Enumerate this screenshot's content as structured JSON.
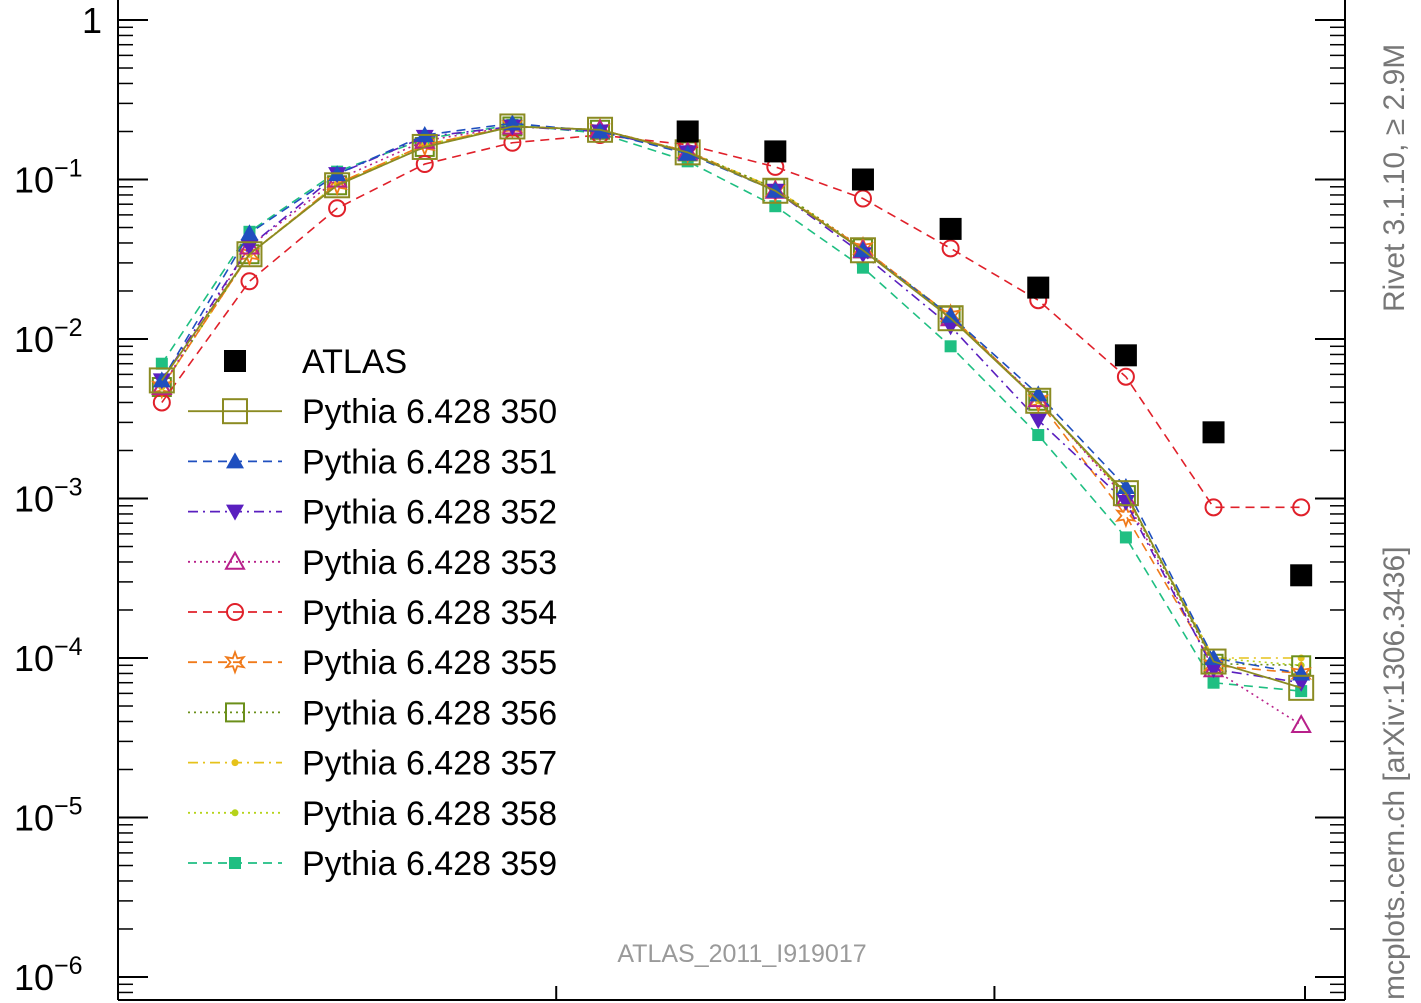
{
  "chart_data": {
    "type": "scatter",
    "title": "",
    "xlabel": "",
    "ylabel": "",
    "y_scale": "log",
    "ylim": [
      1e-06,
      1
    ],
    "xlim": [
      0.5,
      14.5
    ],
    "x": [
      1,
      2,
      3,
      4,
      5,
      6,
      7,
      8,
      9,
      10,
      11,
      12,
      13,
      14
    ],
    "y_ticks": [
      {
        "base": "1",
        "exp": ""
      },
      {
        "base": "10",
        "exp": "−1"
      },
      {
        "base": "10",
        "exp": "−2"
      },
      {
        "base": "10",
        "exp": "−3"
      },
      {
        "base": "10",
        "exp": "−4"
      },
      {
        "base": "10",
        "exp": "−5"
      },
      {
        "base": "10",
        "exp": "−6"
      }
    ],
    "watermark": "ATLAS_2011_I919017",
    "side_text": {
      "left": "mcplots.cern.ch [arXiv:1306.3436]",
      "right": "Rivet 3.1.10, ≥ 2.9M"
    },
    "legend_position": "left-middle",
    "series": [
      {
        "name": "ATLAS",
        "color": "#000000",
        "marker": "square-filled",
        "dash": "none",
        "values": [
          null,
          null,
          null,
          null,
          null,
          null,
          0.2,
          0.15,
          0.1,
          0.049,
          0.021,
          0.0079,
          0.0026,
          0.00033
        ]
      },
      {
        "name": "Pythia 6.428 350",
        "color": "#8b8b22",
        "marker": "square-open-large",
        "dash": "solid",
        "values": [
          0.0055,
          0.034,
          0.092,
          0.16,
          0.215,
          0.205,
          0.148,
          0.085,
          0.036,
          0.0135,
          0.0041,
          0.00108,
          9.5e-05,
          6.5e-05
        ]
      },
      {
        "name": "Pythia 6.428 351",
        "color": "#1f4fbf",
        "marker": "triangle-up-filled",
        "dash": "dashed",
        "values": [
          0.0055,
          0.046,
          0.108,
          0.19,
          0.225,
          0.2,
          0.145,
          0.085,
          0.036,
          0.014,
          0.0045,
          0.00118,
          0.0001,
          8e-05
        ]
      },
      {
        "name": "Pythia 6.428 352",
        "color": "#5a1fbf",
        "marker": "triangle-down-filled",
        "dash": "dashdot",
        "values": [
          0.0055,
          0.038,
          0.108,
          0.185,
          0.215,
          0.2,
          0.148,
          0.085,
          0.034,
          0.012,
          0.0031,
          0.00095,
          8.5e-05,
          7e-05
        ]
      },
      {
        "name": "Pythia 6.428 353",
        "color": "#b8208a",
        "marker": "triangle-up-open",
        "dash": "dotted",
        "values": [
          0.005,
          0.038,
          0.1,
          0.175,
          0.215,
          0.205,
          0.148,
          0.085,
          0.036,
          0.0135,
          0.0042,
          0.001,
          8.5e-05,
          3.8e-05
        ]
      },
      {
        "name": "Pythia 6.428 354",
        "color": "#e0202a",
        "marker": "circle-open",
        "dash": "dashed",
        "values": [
          0.004,
          0.023,
          0.066,
          0.125,
          0.17,
          0.19,
          0.165,
          0.12,
          0.076,
          0.037,
          0.0175,
          0.0058,
          0.00088,
          0.00088
        ]
      },
      {
        "name": "Pythia 6.428 355",
        "color": "#f07a1a",
        "marker": "star-open",
        "dash": "dashed",
        "values": [
          0.005,
          0.034,
          0.094,
          0.165,
          0.215,
          0.205,
          0.15,
          0.085,
          0.037,
          0.014,
          0.0041,
          0.00078,
          9e-05,
          8e-05
        ]
      },
      {
        "name": "Pythia 6.428 356",
        "color": "#6b8f1a",
        "marker": "square-open",
        "dash": "dotted",
        "values": [
          0.005,
          0.034,
          0.092,
          0.16,
          0.215,
          0.205,
          0.15,
          0.088,
          0.037,
          0.014,
          0.0041,
          0.00105,
          9.2e-05,
          9e-05
        ]
      },
      {
        "name": "Pythia 6.428 357",
        "color": "#e6c21a",
        "marker": "dot",
        "dash": "dashdot",
        "values": [
          0.005,
          0.034,
          0.094,
          0.165,
          0.215,
          0.205,
          0.15,
          0.088,
          0.036,
          0.014,
          0.0041,
          0.00105,
          0.0001,
          0.0001
        ]
      },
      {
        "name": "Pythia 6.428 358",
        "color": "#b6d31a",
        "marker": "dot",
        "dash": "dotted",
        "values": [
          0.005,
          0.034,
          0.094,
          0.165,
          0.215,
          0.205,
          0.15,
          0.088,
          0.036,
          0.014,
          0.0041,
          0.00105,
          0.0001,
          9e-05
        ]
      },
      {
        "name": "Pythia 6.428 359",
        "color": "#1fbf82",
        "marker": "square-filled-small",
        "dash": "dashed",
        "values": [
          0.007,
          0.047,
          0.112,
          0.18,
          0.22,
          0.195,
          0.13,
          0.068,
          0.028,
          0.009,
          0.0025,
          0.00057,
          7e-05,
          6.2e-05
        ]
      }
    ]
  }
}
